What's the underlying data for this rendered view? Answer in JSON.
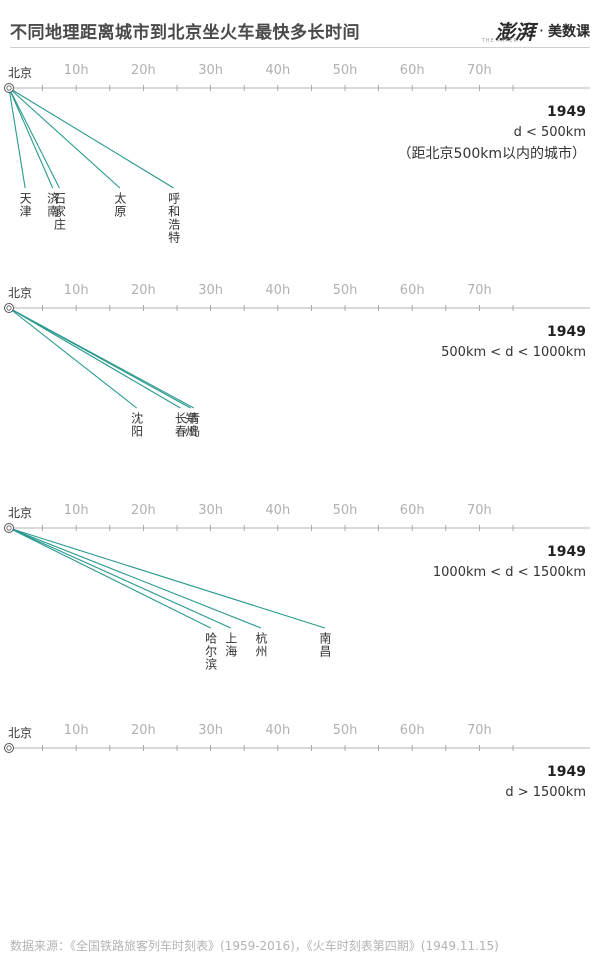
{
  "header": {
    "title": "不同地理距离城市到北京坐火车最快多长时间",
    "brand_logo": "澎湃",
    "brand_sub": "THE PAPER",
    "brand_dot": "·",
    "brand_name": "美数课"
  },
  "footer": {
    "source": "数据来源：《全国铁路旅客列车时刻表》(1959-2016)，《火车时刻表第四期》(1949.11.15)"
  },
  "colors": {
    "line": "#2a9a8f",
    "axis": "#9a9a9a",
    "tick_label": "#b0b0b0",
    "origin": "#555555"
  },
  "chart_data": [
    {
      "type": "line",
      "origin_label": "北京",
      "x_ticks": [
        "10h",
        "20h",
        "30h",
        "40h",
        "50h",
        "60h",
        "70h"
      ],
      "xlim": [
        0,
        75
      ],
      "year": "1949",
      "range": "d < 500km",
      "note": "（距北京500km以内的城市）",
      "series": [
        {
          "name": "天津",
          "hours": 2.4
        },
        {
          "name": "石家庄",
          "hours": 7.5
        },
        {
          "name": "济南",
          "hours": 6.5
        },
        {
          "name": "太原",
          "hours": 16.5
        },
        {
          "name": "呼和浩特",
          "hours": 24.5
        }
      ]
    },
    {
      "type": "line",
      "origin_label": "北京",
      "x_ticks": [
        "10h",
        "20h",
        "30h",
        "40h",
        "50h",
        "60h",
        "70h"
      ],
      "xlim": [
        0,
        75
      ],
      "year": "1949",
      "range": "500km < d < 1000km",
      "note": "",
      "series": [
        {
          "name": "沈阳",
          "hours": 19
        },
        {
          "name": "长春",
          "hours": 25.5
        },
        {
          "name": "郑州",
          "hours": 27
        },
        {
          "name": "青岛",
          "hours": 27.5
        }
      ]
    },
    {
      "type": "line",
      "origin_label": "北京",
      "x_ticks": [
        "10h",
        "20h",
        "30h",
        "40h",
        "50h",
        "60h",
        "70h"
      ],
      "xlim": [
        0,
        75
      ],
      "year": "1949",
      "range": "1000km < d < 1500km",
      "note": "",
      "series": [
        {
          "name": "哈尔滨",
          "hours": 30
        },
        {
          "name": "上海",
          "hours": 33
        },
        {
          "name": "杭州",
          "hours": 37.5
        },
        {
          "name": "南昌",
          "hours": 47
        }
      ]
    },
    {
      "type": "line",
      "origin_label": "北京",
      "x_ticks": [
        "10h",
        "20h",
        "30h",
        "40h",
        "50h",
        "60h",
        "70h"
      ],
      "xlim": [
        0,
        75
      ],
      "year": "1949",
      "range": "d > 1500km",
      "note": "",
      "series": []
    }
  ]
}
